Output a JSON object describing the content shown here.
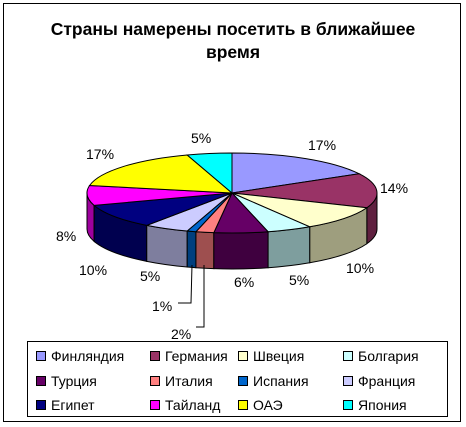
{
  "chart_data": {
    "type": "pie",
    "title": "Страны намерены посетить в ближайшее время",
    "categories": [
      "Финляндия",
      "Германия",
      "Швеция",
      "Болгария",
      "Турция",
      "Италия",
      "Испания",
      "Франция",
      "Египет",
      "Тайланд",
      "ОАЭ",
      "Япония"
    ],
    "values": [
      17,
      14,
      10,
      5,
      6,
      2,
      1,
      5,
      10,
      8,
      17,
      5
    ],
    "data_labels": [
      "17%",
      "14%",
      "10%",
      "5%",
      "6%",
      "2%",
      "1%",
      "5%",
      "10%",
      "8%",
      "17%",
      "5%"
    ],
    "colors": [
      "#9999FF",
      "#993366",
      "#FFFFCC",
      "#CCFFFF",
      "#660066",
      "#FF8080",
      "#0066CC",
      "#CCCCFF",
      "#000080",
      "#FF00FF",
      "#FFFF00",
      "#00FFFF"
    ],
    "legend_position": "bottom",
    "style": "3d"
  }
}
